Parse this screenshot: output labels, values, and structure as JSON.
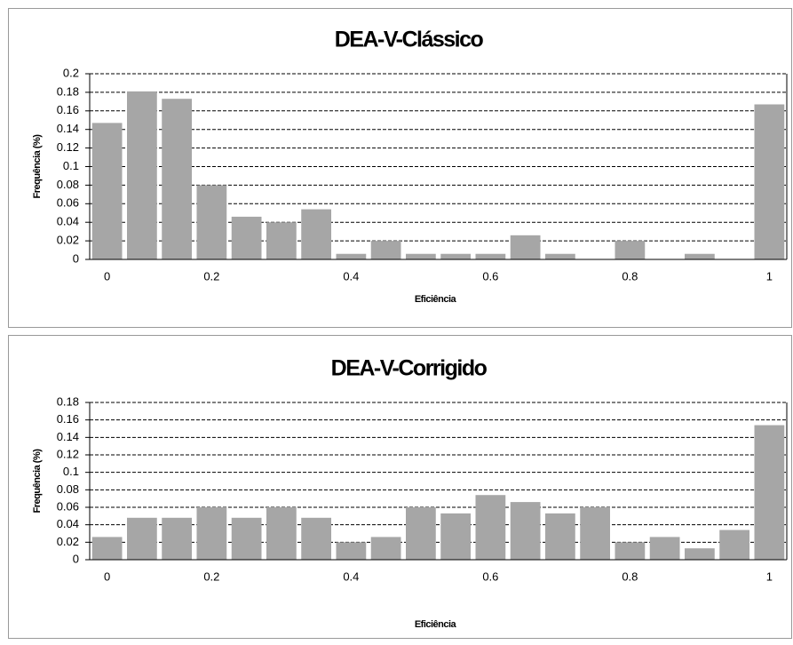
{
  "chart_data": [
    {
      "type": "bar",
      "title": "DEA-V-Clássico",
      "x_label": "Eficiência",
      "y_label": "Frequência (%)",
      "categories": [
        "0",
        null,
        null,
        "0.2",
        null,
        null,
        null,
        "0.4",
        null,
        null,
        null,
        "0.6",
        null,
        null,
        null,
        "0.8",
        null,
        null,
        null,
        "1"
      ],
      "values": [
        0.147,
        0.181,
        0.173,
        0.08,
        0.046,
        0.04,
        0.054,
        0.006,
        0.02,
        0.006,
        0.006,
        0.006,
        0.026,
        0.006,
        0,
        0.02,
        0,
        0.006,
        0,
        0.167
      ],
      "color": "#a6a6a6",
      "ylim": [
        0,
        0.2
      ],
      "yticks": [
        0,
        0.02,
        0.04,
        0.06,
        0.08,
        0.1,
        0.12,
        0.14,
        0.16,
        0.18,
        0.2
      ],
      "grid": true
    },
    {
      "type": "bar",
      "title": "DEA-V-Corrigido",
      "x_label": "Eficiência",
      "y_label": "Frequência (%)",
      "categories": [
        "0",
        null,
        null,
        "0.2",
        null,
        null,
        null,
        "0.4",
        null,
        null,
        null,
        "0.6",
        null,
        null,
        null,
        "0.8",
        null,
        null,
        null,
        "1"
      ],
      "values": [
        0.026,
        0.048,
        0.048,
        0.06,
        0.048,
        0.06,
        0.048,
        0.02,
        0.026,
        0.06,
        0.053,
        0.074,
        0.066,
        0.053,
        0.06,
        0.02,
        0.026,
        0.013,
        0.034,
        0.154
      ],
      "color": "#a6a6a6",
      "ylim": [
        0,
        0.18
      ],
      "yticks": [
        0,
        0.02,
        0.04,
        0.06,
        0.08,
        0.1,
        0.12,
        0.14,
        0.16,
        0.18
      ],
      "grid": true
    }
  ]
}
